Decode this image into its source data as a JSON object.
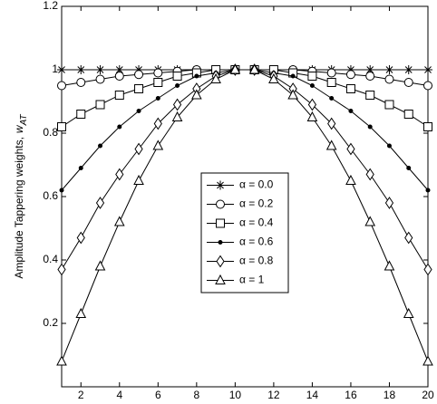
{
  "chart_data": {
    "type": "line",
    "ylabel": "Amplitude Tappering weights,",
    "ylabel_symbol": "w",
    "ylabel_subscript": "AT",
    "x": [
      1,
      2,
      3,
      4,
      5,
      6,
      7,
      8,
      9,
      10,
      11,
      12,
      13,
      14,
      15,
      16,
      17,
      18,
      19,
      20
    ],
    "xlim": [
      1,
      20
    ],
    "xticks": [
      2,
      4,
      6,
      8,
      10,
      12,
      14,
      16,
      18,
      20
    ],
    "ylim": [
      0,
      1.2
    ],
    "yticks": [
      0.2,
      0.4,
      0.6,
      0.8,
      1,
      1.2
    ],
    "grid": false,
    "legend": "center",
    "series": [
      {
        "name": "α = 0.0",
        "color": "#000000",
        "marker": "star",
        "values": [
          1,
          1,
          1,
          1,
          1,
          1,
          1,
          1,
          1,
          1,
          1,
          1,
          1,
          1,
          1,
          1,
          1,
          1,
          1,
          1
        ]
      },
      {
        "name": "α = 0.2",
        "color": "#000000",
        "marker": "circle",
        "values": [
          0.95,
          0.96,
          0.97,
          0.98,
          0.985,
          0.99,
          0.995,
          1,
          1,
          1,
          1,
          1,
          1,
          0.995,
          0.99,
          0.985,
          0.98,
          0.97,
          0.96,
          0.95
        ]
      },
      {
        "name": "α = 0.4",
        "color": "#000000",
        "marker": "square",
        "values": [
          0.82,
          0.86,
          0.89,
          0.92,
          0.94,
          0.96,
          0.98,
          0.99,
          1,
          1,
          1,
          1,
          0.99,
          0.98,
          0.96,
          0.94,
          0.92,
          0.89,
          0.86,
          0.82
        ]
      },
      {
        "name": "α = 0.6",
        "color": "#000000",
        "marker": "dot",
        "values": [
          0.62,
          0.69,
          0.76,
          0.82,
          0.87,
          0.91,
          0.95,
          0.98,
          0.99,
          1,
          1,
          0.99,
          0.98,
          0.95,
          0.91,
          0.87,
          0.82,
          0.76,
          0.69,
          0.62
        ]
      },
      {
        "name": "α = 0.8",
        "color": "#000000",
        "marker": "diamond",
        "values": [
          0.37,
          0.47,
          0.58,
          0.67,
          0.75,
          0.83,
          0.89,
          0.94,
          0.98,
          1,
          1,
          0.98,
          0.94,
          0.89,
          0.83,
          0.75,
          0.67,
          0.58,
          0.47,
          0.37
        ]
      },
      {
        "name": "α = 1",
        "color": "#000000",
        "marker": "triangle",
        "values": [
          0.08,
          0.23,
          0.38,
          0.52,
          0.65,
          0.76,
          0.85,
          0.92,
          0.97,
          1,
          1,
          0.97,
          0.92,
          0.85,
          0.76,
          0.65,
          0.52,
          0.38,
          0.23,
          0.08
        ]
      }
    ]
  }
}
